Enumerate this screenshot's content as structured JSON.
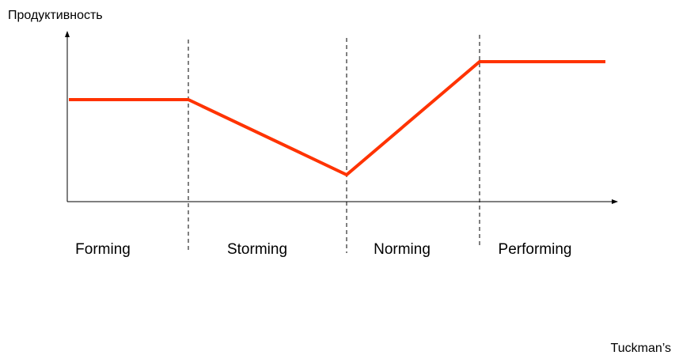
{
  "axis_label": "Продуктивность",
  "stages": [
    "Forming",
    "Storming",
    "Norming",
    "Performing"
  ],
  "caption": "Tuckman’s"
}
